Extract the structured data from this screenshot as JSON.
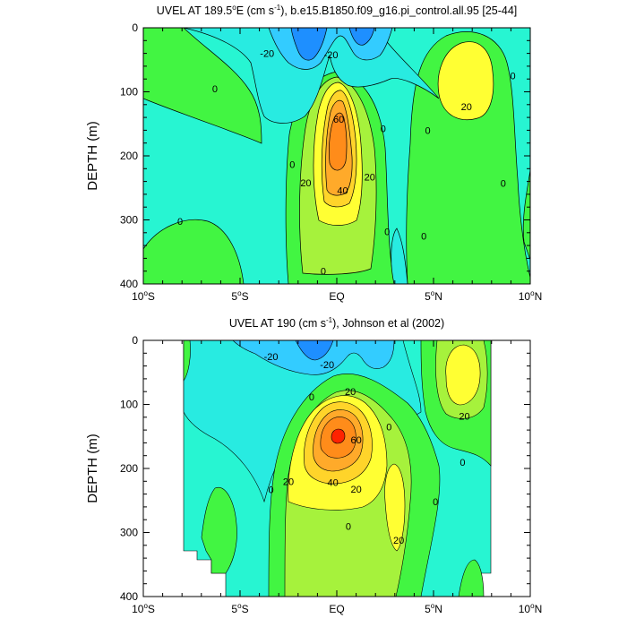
{
  "chart_data": [
    {
      "type": "contour",
      "title_prefix": "UVEL AT 189.5",
      "title_sup1": "o",
      "title_mid": "E (cm s",
      "title_sup2": "-1",
      "title_suffix": "), b.e15.B1850.f09_g16.pi_control.all.95 [25-44]",
      "ylabel": "DEPTH (m)",
      "xlim": [
        -10,
        10
      ],
      "ylim": [
        0,
        400
      ],
      "y_inverted": true,
      "x_ticks": [
        -10,
        -5,
        0,
        5,
        10
      ],
      "x_tick_labels": [
        {
          "text": "10",
          "sup": "o",
          "suffix": "S"
        },
        {
          "text": "5",
          "sup": "o",
          "suffix": "S"
        },
        {
          "text": "EQ",
          "sup": "",
          "suffix": ""
        },
        {
          "text": "5",
          "sup": "o",
          "suffix": "N"
        },
        {
          "text": "10",
          "sup": "o",
          "suffix": "N"
        }
      ],
      "y_ticks": [
        0,
        100,
        200,
        300,
        400
      ],
      "y_tick_labels": [
        "0",
        "100",
        "200",
        "300",
        "400"
      ],
      "contour_labels": [
        {
          "text": "-20",
          "lat": -3.6,
          "depth": 40
        },
        {
          "text": "-20",
          "lat": -0.3,
          "depth": 42
        },
        {
          "text": "0",
          "lat": -6.3,
          "depth": 95
        },
        {
          "text": "0",
          "lat": 2.4,
          "depth": 157
        },
        {
          "text": "0",
          "lat": 4.7,
          "depth": 160
        },
        {
          "text": "0",
          "lat": 9.1,
          "depth": 75
        },
        {
          "text": "0",
          "lat": -2.3,
          "depth": 213
        },
        {
          "text": "0",
          "lat": -8.1,
          "depth": 302
        },
        {
          "text": "0",
          "lat": 2.6,
          "depth": 318
        },
        {
          "text": "0",
          "lat": 4.5,
          "depth": 325
        },
        {
          "text": "0",
          "lat": 8.6,
          "depth": 243
        },
        {
          "text": "0",
          "lat": -0.7,
          "depth": 380
        },
        {
          "text": "20",
          "lat": 6.7,
          "depth": 123
        },
        {
          "text": "20",
          "lat": -1.6,
          "depth": 242
        },
        {
          "text": "20",
          "lat": 1.7,
          "depth": 233
        },
        {
          "text": "40",
          "lat": 0.3,
          "depth": 254
        },
        {
          "text": "60",
          "lat": 0.1,
          "depth": 143
        }
      ]
    },
    {
      "type": "contour",
      "title_prefix": "UVEL AT 190 (cm s",
      "title_sup1": "-1",
      "title_mid": "), Johnson et al (2002)",
      "title_sup2": "",
      "title_suffix": "",
      "ylabel": "DEPTH (m)",
      "xlim": [
        -10,
        10
      ],
      "ylim": [
        0,
        400
      ],
      "y_inverted": true,
      "x_ticks": [
        -10,
        -5,
        0,
        5,
        10
      ],
      "x_tick_labels": [
        {
          "text": "10",
          "sup": "o",
          "suffix": "S"
        },
        {
          "text": "5",
          "sup": "o",
          "suffix": "S"
        },
        {
          "text": "EQ",
          "sup": "",
          "suffix": ""
        },
        {
          "text": "5",
          "sup": "o",
          "suffix": "N"
        },
        {
          "text": "10",
          "sup": "o",
          "suffix": "N"
        }
      ],
      "y_ticks": [
        0,
        100,
        200,
        300,
        400
      ],
      "y_tick_labels": [
        "0",
        "100",
        "200",
        "300",
        "400"
      ],
      "contour_labels": [
        {
          "text": "-20",
          "lat": -3.4,
          "depth": 25
        },
        {
          "text": "-20",
          "lat": -0.5,
          "depth": 38
        },
        {
          "text": "20",
          "lat": 0.7,
          "depth": 80
        },
        {
          "text": "0",
          "lat": -1.3,
          "depth": 88
        },
        {
          "text": "0",
          "lat": 2.7,
          "depth": 135
        },
        {
          "text": "20",
          "lat": 6.6,
          "depth": 118
        },
        {
          "text": "0",
          "lat": 6.5,
          "depth": 190
        },
        {
          "text": "60",
          "lat": 1.0,
          "depth": 155
        },
        {
          "text": "20",
          "lat": -2.5,
          "depth": 220
        },
        {
          "text": "40",
          "lat": -0.2,
          "depth": 222
        },
        {
          "text": "20",
          "lat": 1.0,
          "depth": 232
        },
        {
          "text": "0",
          "lat": -3.4,
          "depth": 233
        },
        {
          "text": "0",
          "lat": 5.1,
          "depth": 252
        },
        {
          "text": "20",
          "lat": 3.2,
          "depth": 312
        },
        {
          "text": "0",
          "lat": 0.6,
          "depth": 290
        }
      ]
    }
  ],
  "colors": {
    "frame": "#000000",
    "level_m40": "#1e8fff",
    "level_m20": "#33ccff",
    "level_m10": "#28ebe1",
    "level_0": "#27f5d2",
    "level_10": "#42f542",
    "level_20": "#a6f23c",
    "level_30": "#ffff33",
    "level_40": "#ffd42a",
    "level_50": "#ffaa2a",
    "level_60": "#ff8c1a",
    "level_70": "#ff2200",
    "missing": "#ffffff"
  }
}
